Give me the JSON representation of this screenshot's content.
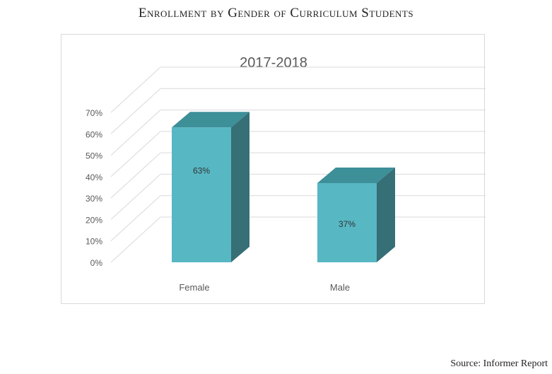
{
  "page": {
    "title": "Enrollment by Gender of Curriculum Students",
    "source": "Source: Informer Report"
  },
  "colors": {
    "bar_front": "#57b8c4",
    "bar_top": "#3d8f98",
    "bar_side": "#366f76",
    "grid": "#d9d9d9",
    "text": "#595959"
  },
  "chart_data": {
    "type": "bar",
    "title": "2017-2018",
    "categories": [
      "Female",
      "Male"
    ],
    "values": [
      63,
      37
    ],
    "data_labels": [
      "63%",
      "37%"
    ],
    "y_ticks": [
      "0%",
      "10%",
      "20%",
      "30%",
      "40%",
      "50%",
      "60%",
      "70%"
    ],
    "ylim": [
      0,
      70
    ],
    "grid": true,
    "style": "3d-column"
  }
}
